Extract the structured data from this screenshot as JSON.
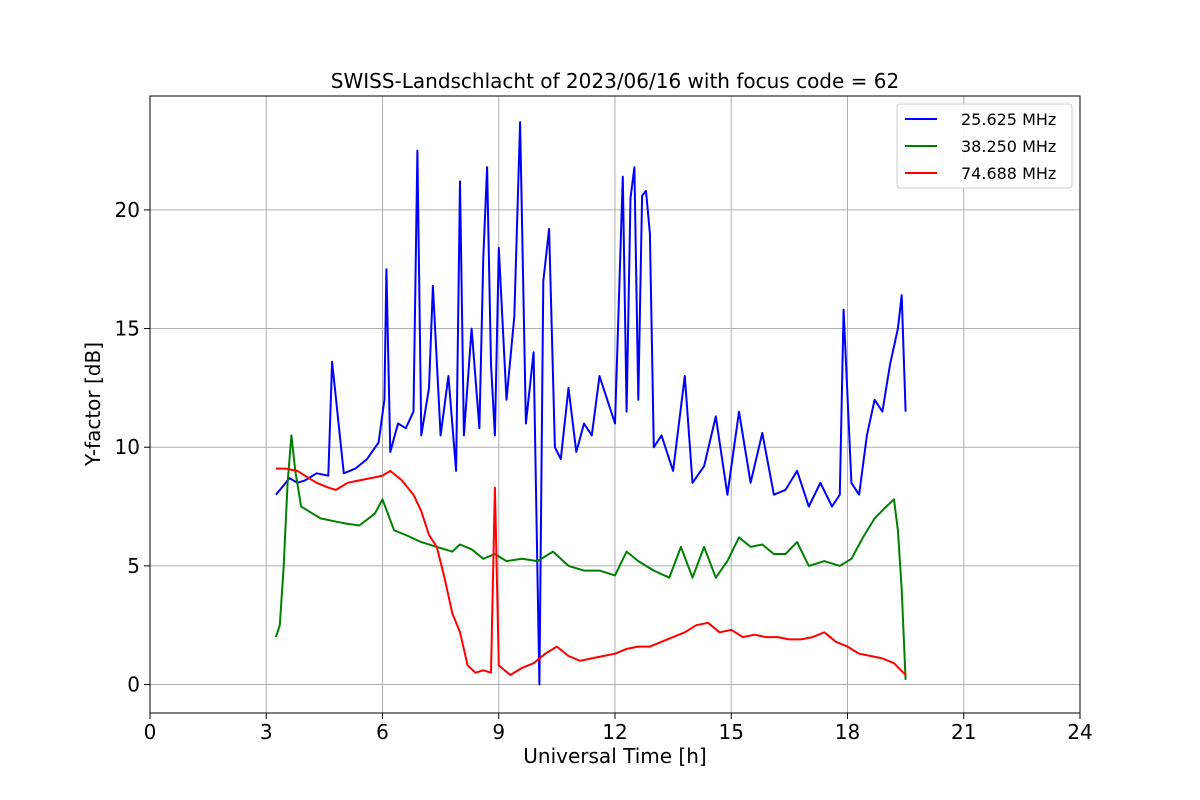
{
  "chart_data": {
    "type": "line",
    "title": "SWISS-Landschlacht of 2023/06/16 with focus code = 62",
    "xlabel": "Universal Time [h]",
    "ylabel": "Y-factor [dB]",
    "xlim": [
      0,
      24
    ],
    "ylim": [
      -1.2,
      24.8
    ],
    "xticks": [
      0,
      3,
      6,
      9,
      12,
      15,
      18,
      21,
      24
    ],
    "yticks": [
      0,
      5,
      10,
      15,
      20
    ],
    "grid": true,
    "legend_position": "upper right",
    "series": [
      {
        "name": "25.625 MHz",
        "color": "#0000ff",
        "x": [
          3.25,
          3.4,
          3.6,
          3.8,
          4.0,
          4.3,
          4.6,
          4.7,
          5.0,
          5.3,
          5.6,
          5.9,
          6.05,
          6.1,
          6.2,
          6.4,
          6.6,
          6.8,
          6.9,
          7.0,
          7.2,
          7.3,
          7.5,
          7.7,
          7.9,
          8.0,
          8.1,
          8.3,
          8.5,
          8.6,
          8.7,
          8.8,
          8.9,
          9.0,
          9.2,
          9.4,
          9.55,
          9.7,
          9.9,
          10.05,
          10.15,
          10.3,
          10.45,
          10.6,
          10.8,
          11.0,
          11.2,
          11.4,
          11.6,
          11.8,
          12.0,
          12.2,
          12.3,
          12.4,
          12.5,
          12.6,
          12.7,
          12.8,
          12.9,
          13.0,
          13.2,
          13.5,
          13.8,
          14.0,
          14.3,
          14.6,
          14.9,
          15.2,
          15.5,
          15.8,
          16.1,
          16.4,
          16.7,
          17.0,
          17.3,
          17.6,
          17.8,
          17.9,
          18.1,
          18.3,
          18.5,
          18.7,
          18.9,
          19.1,
          19.3,
          19.4,
          19.5
        ],
        "y": [
          8.0,
          8.3,
          8.7,
          8.5,
          8.6,
          8.9,
          8.8,
          13.6,
          8.9,
          9.1,
          9.5,
          10.2,
          12.0,
          17.5,
          9.8,
          11.0,
          10.8,
          11.5,
          22.5,
          10.5,
          12.5,
          16.8,
          10.5,
          13.0,
          9.0,
          21.2,
          10.5,
          15.0,
          10.8,
          18.0,
          21.8,
          13.5,
          10.5,
          18.4,
          12.0,
          15.5,
          23.7,
          11.0,
          14.0,
          0.0,
          17.0,
          19.2,
          10.0,
          9.5,
          12.5,
          9.8,
          11.0,
          10.5,
          13.0,
          12.0,
          11.0,
          21.4,
          11.5,
          20.5,
          21.8,
          12.0,
          20.6,
          20.8,
          19.0,
          10.0,
          10.5,
          9.0,
          13.0,
          8.5,
          9.2,
          11.3,
          8.0,
          11.5,
          8.5,
          10.6,
          8.0,
          8.2,
          9.0,
          7.5,
          8.5,
          7.5,
          8.0,
          15.8,
          8.5,
          8.0,
          10.5,
          12.0,
          11.5,
          13.5,
          15.0,
          16.4,
          11.5
        ]
      },
      {
        "name": "38.250 MHz",
        "color": "#008000",
        "x": [
          3.25,
          3.35,
          3.45,
          3.55,
          3.65,
          3.75,
          3.9,
          4.1,
          4.4,
          4.7,
          5.0,
          5.4,
          5.8,
          6.0,
          6.3,
          6.6,
          7.0,
          7.4,
          7.8,
          8.0,
          8.3,
          8.6,
          8.9,
          9.2,
          9.6,
          10.0,
          10.4,
          10.8,
          11.2,
          11.6,
          12.0,
          12.3,
          12.6,
          13.0,
          13.4,
          13.7,
          14.0,
          14.3,
          14.6,
          14.9,
          15.2,
          15.5,
          15.8,
          16.1,
          16.4,
          16.7,
          17.0,
          17.4,
          17.8,
          18.1,
          18.4,
          18.7,
          19.0,
          19.2,
          19.3,
          19.4,
          19.5
        ],
        "y": [
          2.0,
          2.5,
          5.0,
          8.5,
          10.5,
          9.0,
          7.5,
          7.3,
          7.0,
          6.9,
          6.8,
          6.7,
          7.2,
          7.8,
          6.5,
          6.3,
          6.0,
          5.8,
          5.6,
          5.9,
          5.7,
          5.3,
          5.5,
          5.2,
          5.3,
          5.2,
          5.6,
          5.0,
          4.8,
          4.8,
          4.6,
          5.6,
          5.2,
          4.8,
          4.5,
          5.8,
          4.5,
          5.8,
          4.5,
          5.2,
          6.2,
          5.8,
          5.9,
          5.5,
          5.5,
          6.0,
          5.0,
          5.2,
          5.0,
          5.3,
          6.2,
          7.0,
          7.5,
          7.8,
          6.5,
          4.0,
          0.2
        ]
      },
      {
        "name": "74.688 MHz",
        "color": "#ff0000",
        "x": [
          3.25,
          3.5,
          3.8,
          4.0,
          4.3,
          4.6,
          4.8,
          5.1,
          5.4,
          5.7,
          6.0,
          6.2,
          6.5,
          6.8,
          7.0,
          7.2,
          7.4,
          7.6,
          7.8,
          8.0,
          8.2,
          8.4,
          8.6,
          8.8,
          8.9,
          9.0,
          9.3,
          9.6,
          9.9,
          10.2,
          10.5,
          10.8,
          11.1,
          11.4,
          11.7,
          12.0,
          12.3,
          12.6,
          12.9,
          13.2,
          13.5,
          13.8,
          14.1,
          14.4,
          14.7,
          15.0,
          15.3,
          15.6,
          15.9,
          16.2,
          16.5,
          16.8,
          17.1,
          17.4,
          17.7,
          18.0,
          18.3,
          18.6,
          18.9,
          19.2,
          19.5
        ],
        "y": [
          9.1,
          9.1,
          9.0,
          8.8,
          8.5,
          8.3,
          8.2,
          8.5,
          8.6,
          8.7,
          8.8,
          9.0,
          8.6,
          8.0,
          7.3,
          6.3,
          5.8,
          4.5,
          3.0,
          2.2,
          0.8,
          0.5,
          0.6,
          0.5,
          8.3,
          0.8,
          0.4,
          0.7,
          0.9,
          1.3,
          1.6,
          1.2,
          1.0,
          1.1,
          1.2,
          1.3,
          1.5,
          1.6,
          1.6,
          1.8,
          2.0,
          2.2,
          2.5,
          2.6,
          2.2,
          2.3,
          2.0,
          2.1,
          2.0,
          2.0,
          1.9,
          1.9,
          2.0,
          2.2,
          1.8,
          1.6,
          1.3,
          1.2,
          1.1,
          0.9,
          0.4
        ]
      }
    ]
  }
}
